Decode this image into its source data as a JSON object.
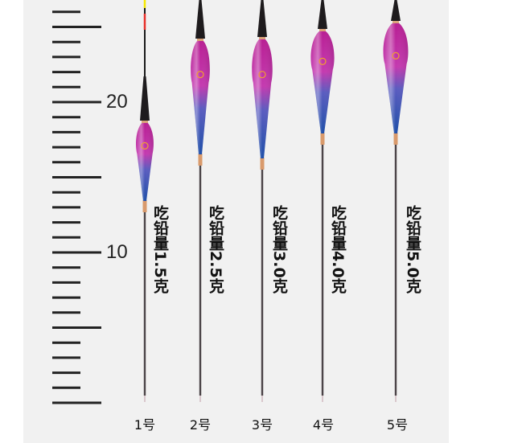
{
  "ruler": {
    "labels": [
      "20",
      "10"
    ]
  },
  "floats": [
    {
      "number": "1号",
      "load": "吃铅量1.5克"
    },
    {
      "number": "2号",
      "load": "吃铅量2.5克"
    },
    {
      "number": "3号",
      "load": "吃铅量3.0克"
    },
    {
      "number": "4号",
      "load": "吃铅量4.0克"
    },
    {
      "number": "5号",
      "load": "吃铅量5.0克"
    }
  ],
  "colors": {
    "body_top": "#c2259e",
    "body_bottom": "#2a55b0",
    "tip_yellow": "#f5e800",
    "tip_red": "#e8302a",
    "background": "#f1f1f1"
  }
}
